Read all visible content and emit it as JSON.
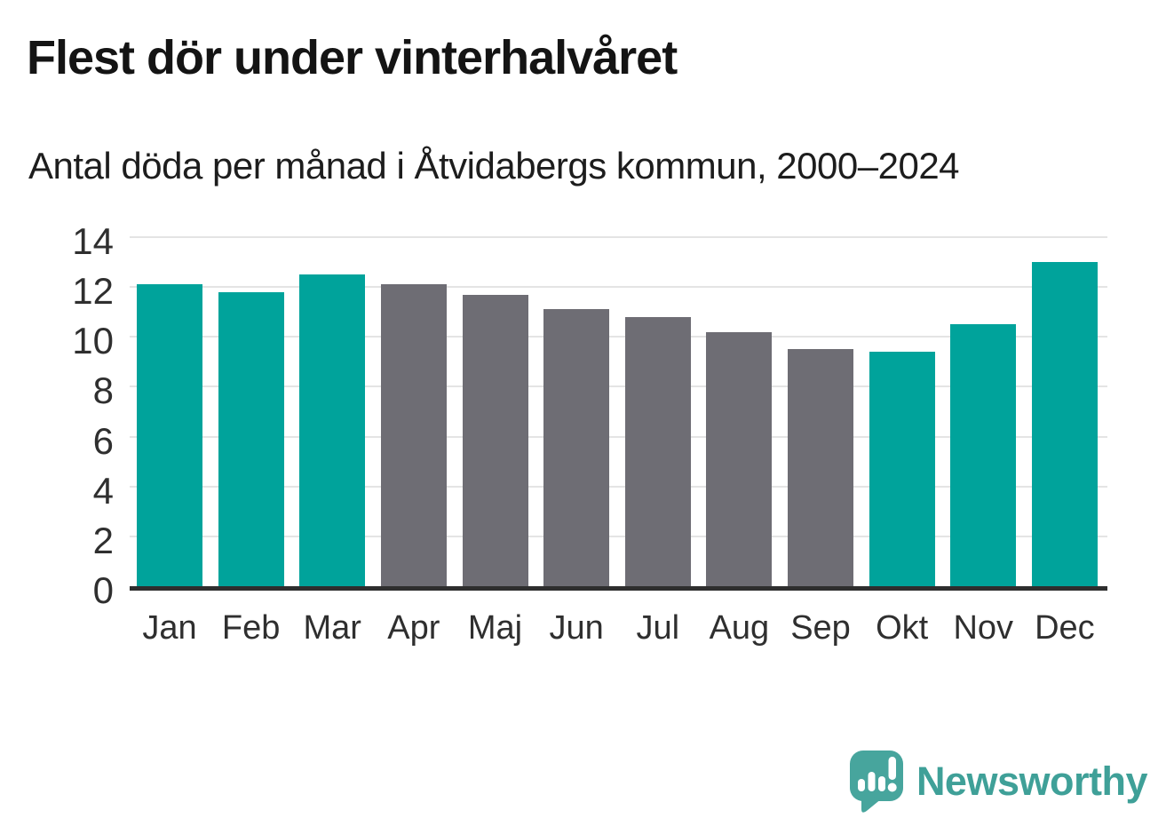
{
  "chart_data": {
    "type": "bar",
    "title": "Flest dör under vinterhalvåret",
    "subtitle": "Antal döda per månad i Åtvidabergs kommun, 2000–2024",
    "categories": [
      "Jan",
      "Feb",
      "Mar",
      "Apr",
      "Maj",
      "Jun",
      "Jul",
      "Aug",
      "Sep",
      "Okt",
      "Nov",
      "Dec"
    ],
    "values": [
      12.1,
      11.8,
      12.5,
      12.1,
      11.7,
      11.1,
      10.8,
      10.2,
      9.5,
      9.4,
      10.5,
      13.0
    ],
    "bar_colors": [
      "winter",
      "winter",
      "winter",
      "summer",
      "summer",
      "summer",
      "summer",
      "summer",
      "summer",
      "winter",
      "winter",
      "winter"
    ],
    "palette": {
      "winter": "#00a39b",
      "summer": "#6e6d74"
    },
    "xlabel": "",
    "ylabel": "",
    "ylim": [
      0,
      14
    ],
    "yticks": [
      0,
      2,
      4,
      6,
      8,
      10,
      12,
      14
    ],
    "grid": "horizontal",
    "legend": "none"
  },
  "branding": {
    "name": "Newsworthy",
    "text_color": "#3fa098",
    "icon_color": "#47a59d",
    "icon": "speech-bubble-bar-chart-icon"
  }
}
